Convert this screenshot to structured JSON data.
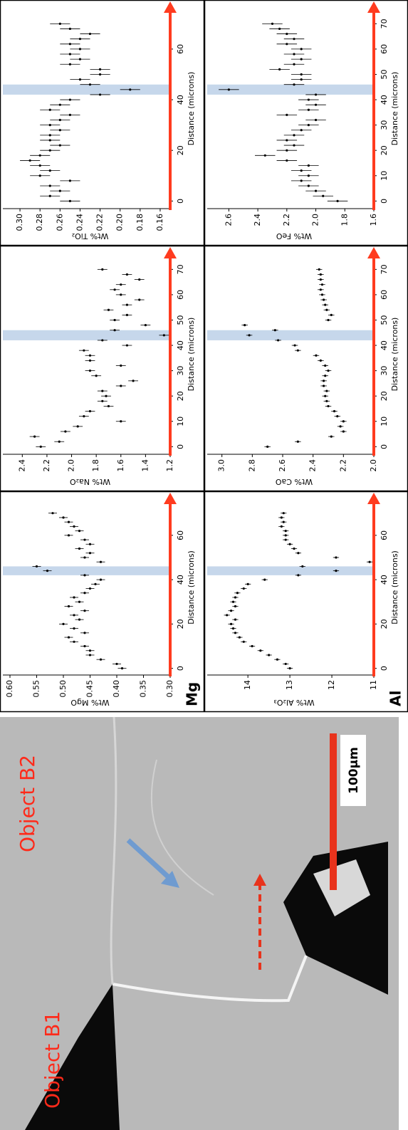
{
  "chart_data": [
    {
      "type": "scatter",
      "ylabel": "Wt% Al₂O₃",
      "corner_label": "Al",
      "xlabel": "Distance (microns)",
      "color": "#000000",
      "x": [
        0,
        2,
        4,
        6,
        8,
        10,
        12,
        14,
        16,
        18,
        20,
        22,
        24,
        26,
        28,
        30,
        32,
        34,
        36,
        38,
        40,
        42,
        44,
        46,
        48,
        50,
        52,
        54,
        56,
        58,
        60,
        62,
        64,
        66,
        68,
        70
      ],
      "values": [
        13.0,
        13.1,
        13.3,
        13.5,
        13.7,
        13.9,
        14.1,
        14.2,
        14.3,
        14.35,
        14.4,
        14.3,
        14.5,
        14.4,
        14.3,
        14.35,
        14.3,
        14.25,
        14.1,
        14.0,
        13.6,
        12.8,
        11.9,
        12.7,
        11.1,
        11.9,
        12.8,
        12.9,
        13.0,
        13.1,
        13.1,
        13.1,
        13.2,
        13.15,
        13.2,
        13.15
      ],
      "error": 0.07,
      "xlim": [
        -3,
        76
      ],
      "xticks": [
        0,
        20,
        40,
        60
      ],
      "ylim": [
        11,
        14.8
      ],
      "yticks": [
        11,
        12,
        13,
        14
      ],
      "highlight_x": [
        42,
        46
      ]
    },
    {
      "type": "scatter",
      "ylabel": "Wt% CaO",
      "xlabel": "Distance (microns)",
      "color": "#000000",
      "x": [
        0,
        2,
        4,
        6,
        8,
        10,
        12,
        14,
        16,
        18,
        20,
        22,
        24,
        26,
        28,
        30,
        32,
        34,
        36,
        38,
        40,
        42,
        44,
        46,
        48,
        50,
        52,
        54,
        56,
        58,
        60,
        62,
        64,
        66,
        68,
        70
      ],
      "values": [
        2.7,
        2.5,
        2.28,
        2.2,
        2.22,
        2.2,
        2.24,
        2.26,
        2.3,
        2.31,
        2.32,
        2.31,
        2.33,
        2.33,
        2.32,
        2.3,
        2.32,
        2.35,
        2.38,
        2.5,
        2.52,
        2.63,
        2.82,
        2.65,
        2.85,
        2.3,
        2.28,
        2.31,
        2.32,
        2.33,
        2.34,
        2.35,
        2.34,
        2.35,
        2.35,
        2.36
      ],
      "error": 0.02,
      "xlim": [
        -3,
        76
      ],
      "xticks": [
        0,
        10,
        20,
        30,
        40,
        50,
        60,
        70
      ],
      "ylim": [
        2.0,
        3.05
      ],
      "yticks": [
        {
          "value": 2,
          "label": "2.0"
        },
        2.2,
        2.4,
        2.6,
        2.8,
        {
          "value": 3,
          "label": "3.0"
        }
      ],
      "highlight_x": [
        42,
        46
      ]
    },
    {
      "type": "scatter",
      "ylabel": "Wt% FeO",
      "xlabel": "Distance (microns)",
      "color": "#000000",
      "x": [
        0,
        2,
        4,
        6,
        8,
        10,
        12,
        14,
        16,
        18,
        20,
        22,
        24,
        26,
        28,
        30,
        32,
        34,
        36,
        38,
        40,
        42,
        44,
        46,
        48,
        50,
        52,
        54,
        56,
        58,
        60,
        62,
        64,
        66,
        68,
        70
      ],
      "values": [
        1.85,
        1.95,
        2.0,
        2.05,
        2.1,
        2.05,
        2.1,
        2.05,
        2.2,
        2.35,
        2.2,
        2.15,
        2.2,
        2.15,
        2.1,
        2.05,
        2.0,
        2.2,
        2.05,
        2.0,
        2.05,
        2.0,
        2.6,
        2.15,
        2.1,
        2.1,
        2.25,
        2.15,
        2.1,
        2.15,
        2.1,
        2.2,
        2.15,
        2.2,
        2.25,
        2.3
      ],
      "error": 0.07,
      "xlim": [
        -3,
        76
      ],
      "xticks": [
        0,
        10,
        20,
        30,
        40,
        50,
        60,
        70
      ],
      "ylim": [
        1.6,
        2.7
      ],
      "yticks": [
        1.6,
        1.8,
        {
          "value": 2,
          "label": "2.0"
        },
        2.2,
        2.4,
        2.6
      ],
      "highlight_x": [
        42,
        46
      ]
    },
    {
      "type": "scatter",
      "ylabel": "Wt% MgO",
      "corner_label": "Mg",
      "xlabel": "Distance (microns)",
      "color": "#000000",
      "x": [
        0,
        2,
        4,
        6,
        8,
        10,
        12,
        14,
        16,
        18,
        20,
        22,
        24,
        26,
        28,
        30,
        32,
        34,
        36,
        38,
        40,
        42,
        44,
        46,
        48,
        50,
        52,
        54,
        56,
        58,
        60,
        62,
        64,
        66,
        68,
        70
      ],
      "values": [
        0.39,
        0.4,
        0.43,
        0.45,
        0.45,
        0.46,
        0.48,
        0.49,
        0.46,
        0.48,
        0.5,
        0.47,
        0.48,
        0.46,
        0.49,
        0.47,
        0.48,
        0.46,
        0.45,
        0.44,
        0.43,
        0.46,
        0.53,
        0.55,
        0.43,
        0.46,
        0.45,
        0.47,
        0.45,
        0.46,
        0.49,
        0.47,
        0.48,
        0.49,
        0.5,
        0.52
      ],
      "error": 0.008,
      "xlim": [
        -3,
        76
      ],
      "xticks": [
        0,
        20,
        40,
        60
      ],
      "ylim": [
        0.3,
        0.6
      ],
      "yticks": [
        {
          "value": 0.3,
          "label": "0.30"
        },
        0.35,
        {
          "value": 0.4,
          "label": "0.40"
        },
        0.45,
        {
          "value": 0.5,
          "label": "0.50"
        },
        0.55,
        {
          "value": 0.6,
          "label": "0.60"
        }
      ],
      "highlight_x": [
        42,
        46
      ]
    },
    {
      "type": "scatter",
      "ylabel": "Wt% Na₂O",
      "xlabel": "Distance (microns)",
      "color": "#000000",
      "x": [
        0,
        2,
        4,
        6,
        8,
        10,
        12,
        14,
        16,
        18,
        20,
        22,
        24,
        26,
        28,
        30,
        32,
        34,
        36,
        38,
        40,
        42,
        44,
        46,
        48,
        50,
        52,
        54,
        56,
        58,
        60,
        62,
        64,
        66,
        68,
        70
      ],
      "values": [
        2.25,
        2.1,
        2.3,
        2.05,
        1.95,
        1.6,
        1.9,
        1.85,
        1.7,
        1.75,
        1.72,
        1.75,
        1.6,
        1.5,
        1.8,
        1.85,
        1.6,
        1.85,
        1.85,
        1.9,
        1.55,
        1.75,
        1.25,
        1.65,
        1.4,
        1.65,
        1.55,
        1.7,
        1.55,
        1.45,
        1.6,
        1.65,
        1.6,
        1.45,
        1.55,
        1.75
      ],
      "error": 0.04,
      "xlim": [
        -3,
        76
      ],
      "xticks": [
        0,
        10,
        20,
        30,
        40,
        50,
        60,
        70
      ],
      "ylim": [
        1.2,
        2.5
      ],
      "yticks": [
        1.2,
        1.4,
        1.6,
        1.8,
        {
          "value": 2,
          "label": "2.0"
        },
        2.2,
        2.4
      ],
      "highlight_x": [
        42,
        46
      ]
    },
    {
      "type": "scatter",
      "ylabel": "Wt% TiO₂",
      "xlabel": "Distance (microns)",
      "color": "#000000",
      "x": [
        0,
        2,
        4,
        6,
        8,
        10,
        12,
        14,
        16,
        18,
        20,
        22,
        24,
        26,
        28,
        30,
        32,
        34,
        36,
        38,
        40,
        42,
        44,
        46,
        48,
        50,
        52,
        54,
        56,
        58,
        60,
        62,
        64,
        66,
        68,
        70
      ],
      "values": [
        0.25,
        0.27,
        0.26,
        0.27,
        0.25,
        0.28,
        0.27,
        0.28,
        0.29,
        0.28,
        0.27,
        0.26,
        0.27,
        0.27,
        0.26,
        0.27,
        0.26,
        0.25,
        0.27,
        0.26,
        0.25,
        0.22,
        0.19,
        0.23,
        0.24,
        0.22,
        0.22,
        0.25,
        0.24,
        0.25,
        0.24,
        0.25,
        0.24,
        0.23,
        0.25,
        0.26
      ],
      "error": 0.01,
      "xlim": [
        -3,
        76
      ],
      "xticks": [
        0,
        20,
        40,
        60
      ],
      "ylim": [
        0.15,
        0.31
      ],
      "yticks": [
        0.16,
        0.18,
        {
          "value": 0.2,
          "label": "0.20"
        },
        0.22,
        0.24,
        0.26,
        0.28,
        {
          "value": 0.3,
          "label": "0.30"
        }
      ],
      "highlight_x": [
        42,
        46
      ]
    }
  ],
  "image": {
    "labels": [
      "Object B1",
      "Object B2"
    ],
    "scale_bar": "100µm"
  }
}
